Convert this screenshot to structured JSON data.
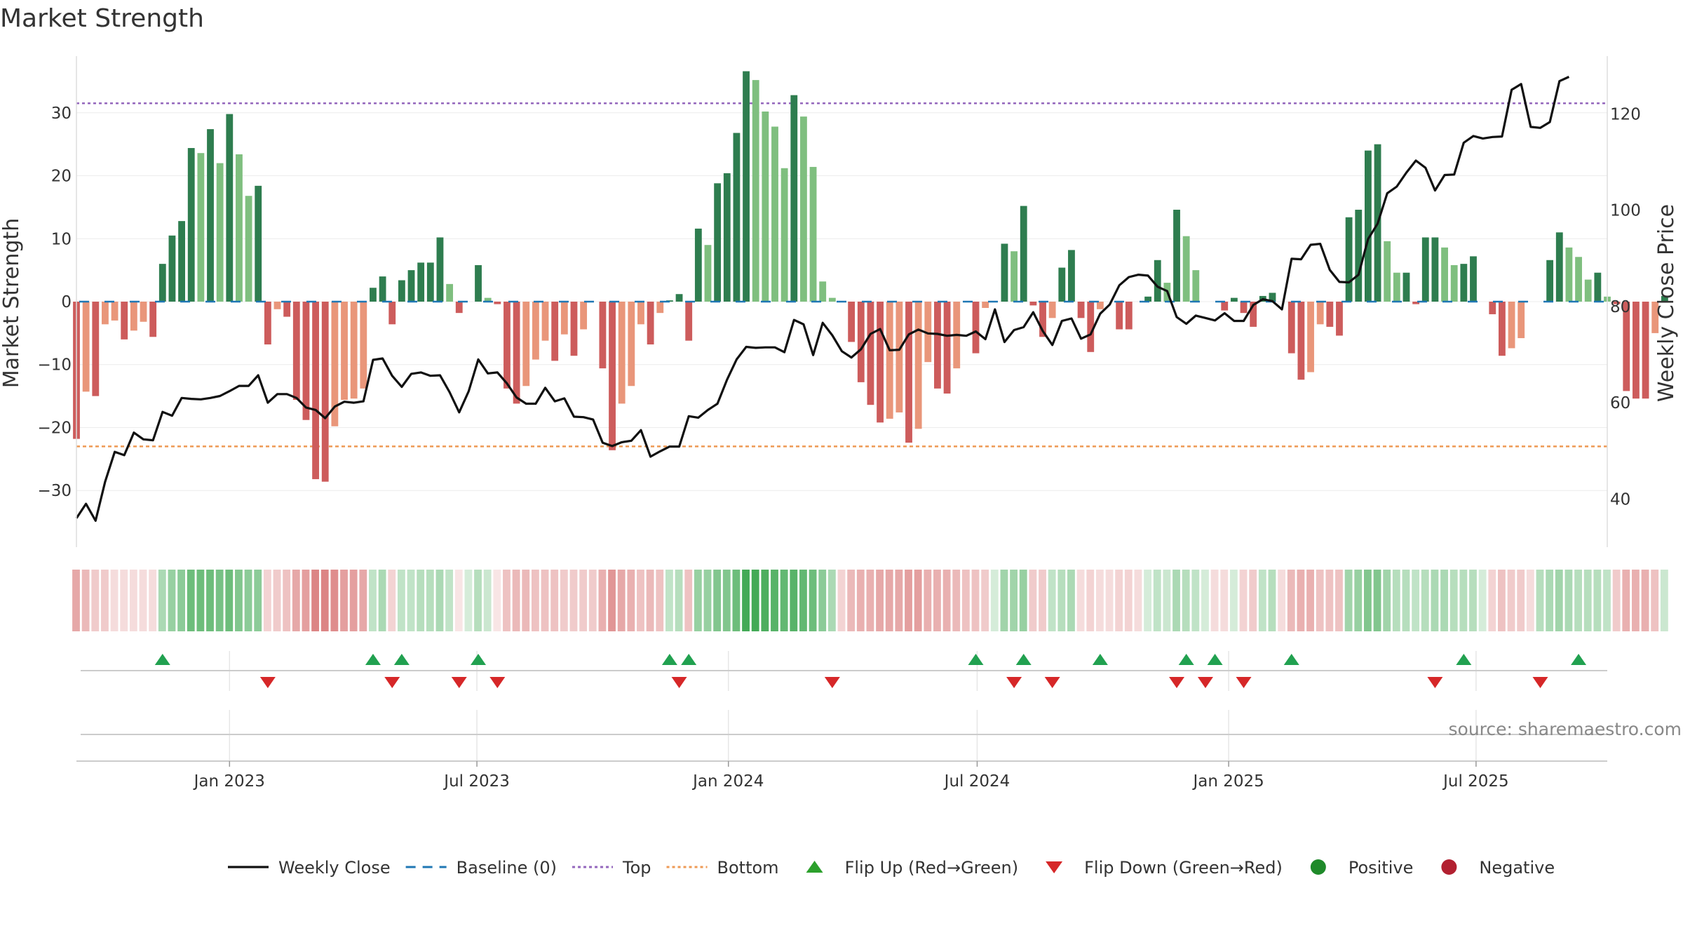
{
  "chart_data": {
    "type": "bar",
    "title": "Market Strength",
    "ylabel": "Market Strength",
    "y2label": "Weekly Close Price",
    "source": "source: sharemaestro.com",
    "ylim": [
      -39,
      39
    ],
    "y2lim": [
      30,
      132
    ],
    "yticks": [
      -30,
      -20,
      -10,
      0,
      10,
      20,
      30
    ],
    "y2ticks": [
      40,
      60,
      80,
      100,
      120
    ],
    "x_start": "2022-09-11",
    "x_end": "2025-10-05",
    "xticks": [
      {
        "date": "2023-01-01",
        "label": "Jan 2023"
      },
      {
        "date": "2023-07-01",
        "label": "Jul 2023"
      },
      {
        "date": "2024-01-01",
        "label": "Jan 2024"
      },
      {
        "date": "2024-07-01",
        "label": "Jul 2024"
      },
      {
        "date": "2025-01-01",
        "label": "Jan 2025"
      },
      {
        "date": "2025-07-01",
        "label": "Jul 2025"
      }
    ],
    "top_level": 31.5,
    "bottom_level": -23,
    "week_start": "2022-09-11",
    "strength": [
      -21.8,
      -14.3,
      -15,
      -3.6,
      -3,
      -6,
      -4.6,
      -3.2,
      -5.6,
      6,
      10.5,
      12.8,
      24.4,
      23.6,
      27.4,
      22,
      29.8,
      23.4,
      16.8,
      18.4,
      -6.8,
      -1.2,
      -2.4,
      -15.6,
      -18.8,
      -28.2,
      -28.6,
      -19.8,
      -15.6,
      -15.4,
      -13.8,
      2.2,
      4,
      -3.6,
      3.4,
      5,
      6.2,
      6.2,
      10.2,
      2.8,
      -1.8,
      0,
      5.8,
      0.6,
      -0.4,
      -13.8,
      -16.2,
      -13.4,
      -9.2,
      -6.2,
      -9.4,
      -5.2,
      -8.6,
      -4.4,
      0,
      -10.6,
      -23.6,
      -16.2,
      -13.4,
      -3.6,
      -6.8,
      -1.8,
      0.2,
      1.2,
      -6.2,
      11.6,
      9,
      18.8,
      20.4,
      26.8,
      36.6,
      35.2,
      30.2,
      27.8,
      21.2,
      32.8,
      29.4,
      21.4,
      3.2,
      0.6,
      0,
      -6.4,
      -12.8,
      -16.4,
      -19.2,
      -18.6,
      -17.6,
      -22.4,
      -20.2,
      -9.6,
      -13.8,
      -14.6,
      -10.6,
      0,
      -8.2,
      -1,
      0,
      9.2,
      8,
      15.2,
      -0.6,
      -5.6,
      -2.6,
      5.4,
      8.2,
      -2.6,
      -8,
      -1.2,
      0,
      -4.4,
      -4.4,
      0,
      0.8,
      6.6,
      3,
      14.6,
      10.4,
      5,
      0,
      0,
      -1.4,
      0.6,
      -1.8,
      -4,
      0.9,
      1.4,
      0,
      -8.2,
      -12.4,
      -11.2,
      -3.6,
      -4,
      -5.4,
      13.4,
      14.6,
      24,
      25,
      9.6,
      4.6,
      4.6,
      -0.4,
      10.2,
      10.2,
      8.6,
      5.8,
      6,
      7.2,
      0,
      -2,
      -8.6,
      -7.4,
      -5.8,
      0,
      0,
      6.6,
      11,
      8.6,
      7.1,
      3.5,
      4.6,
      0.8,
      -0.4,
      -14.2,
      -15.4,
      -15.4,
      -5,
      0.9
    ],
    "close": [
      36,
      39,
      35.5,
      43.6,
      49.8,
      49.1,
      53.8,
      52.4,
      52.2,
      58.1,
      57.3,
      61,
      60.8,
      60.7,
      61,
      61.4,
      62.4,
      63.5,
      63.5,
      65.7,
      60,
      61.8,
      61.8,
      61,
      59,
      58.5,
      56.8,
      59.2,
      60.2,
      60,
      60.3,
      68.9,
      69.2,
      65.6,
      63.3,
      66,
      66.3,
      65.6,
      65.7,
      62.2,
      58,
      62.4,
      69,
      66.1,
      66.3,
      64,
      61.1,
      59.8,
      59.8,
      63.1,
      60.3,
      60.9,
      57.1,
      57,
      56.5,
      51.7,
      51,
      51.8,
      52.1,
      54.3,
      48.8,
      49.9,
      50.9,
      50.9,
      57.2,
      56.9,
      58.5,
      59.8,
      64.8,
      69,
      71.6,
      71.4,
      71.5,
      71.5,
      70.5,
      77.2,
      76.3,
      69.9,
      76.6,
      74,
      70.7,
      69.4,
      71.1,
      74.3,
      75.3,
      70.9,
      71,
      74.2,
      75.2,
      74.4,
      74.3,
      73.9,
      74.1,
      73.9,
      74.8,
      73.2,
      79.4,
      72.6,
      75.1,
      75.7,
      78.8,
      74.9,
      72,
      77,
      77.5,
      73.3,
      74.2,
      78.5,
      80.4,
      84.4,
      86.1,
      86.6,
      86.4,
      84.1,
      83.2,
      77.8,
      76.4,
      78.1,
      77.6,
      77.1,
      78.6,
      77,
      77,
      80.3,
      81.5,
      81.1,
      79.4,
      89.9,
      89.8,
      92.8,
      93,
      87.6,
      85.1,
      85,
      86.6,
      94,
      97.2,
      103.5,
      104.9,
      107.8,
      110.3,
      108.8,
      104.1,
      107.3,
      107.4,
      114,
      115.4,
      114.9,
      115.2,
      115.3,
      125,
      126.2,
      117.3,
      117.1,
      118.3,
      126.8,
      127.7
    ],
    "heat": [
      -0.5,
      -0.4,
      -0.3,
      -0.3,
      -0.2,
      -0.2,
      -0.2,
      -0.2,
      -0.2,
      0.4,
      0.5,
      0.55,
      0.7,
      0.7,
      0.7,
      0.65,
      0.7,
      0.6,
      0.55,
      0.55,
      -0.25,
      -0.3,
      -0.35,
      -0.5,
      -0.55,
      -0.7,
      -0.7,
      -0.65,
      -0.55,
      -0.55,
      -0.5,
      0.3,
      0.4,
      -0.25,
      0.3,
      0.3,
      0.35,
      0.35,
      0.4,
      0.3,
      -0.15,
      0.2,
      0.35,
      0.25,
      -0.15,
      -0.35,
      -0.4,
      -0.4,
      -0.35,
      -0.35,
      -0.35,
      -0.3,
      -0.3,
      -0.3,
      -0.3,
      -0.45,
      -0.6,
      -0.5,
      -0.45,
      -0.35,
      -0.4,
      -0.35,
      0.3,
      0.35,
      -0.35,
      0.5,
      0.5,
      0.6,
      0.6,
      0.7,
      0.9,
      0.9,
      0.85,
      0.8,
      0.75,
      0.8,
      0.75,
      0.7,
      0.55,
      0.4,
      -0.25,
      -0.4,
      -0.45,
      -0.45,
      -0.5,
      -0.5,
      -0.5,
      -0.55,
      -0.55,
      -0.45,
      -0.45,
      -0.45,
      -0.4,
      -0.35,
      -0.35,
      -0.3,
      0.2,
      0.45,
      0.45,
      0.5,
      -0.3,
      -0.3,
      0.3,
      0.35,
      0.4,
      -0.2,
      -0.25,
      -0.2,
      -0.2,
      -0.25,
      -0.25,
      -0.2,
      0.2,
      0.3,
      0.25,
      0.4,
      0.35,
      0.3,
      0.2,
      -0.2,
      -0.2,
      0.2,
      -0.25,
      -0.3,
      0.3,
      0.35,
      -0.2,
      -0.4,
      -0.45,
      -0.45,
      -0.35,
      -0.35,
      -0.35,
      0.45,
      0.5,
      0.6,
      0.6,
      0.45,
      0.35,
      0.35,
      0.3,
      0.35,
      0.4,
      0.4,
      0.35,
      0.35,
      0.35,
      0.2,
      -0.25,
      -0.35,
      -0.3,
      -0.3,
      -0.2,
      0.35,
      0.4,
      0.45,
      0.4,
      0.35,
      0.35,
      0.35,
      0.3,
      -0.3,
      -0.45,
      -0.45,
      -0.45,
      -0.35,
      0.25
    ],
    "flip_up_weeks": [
      9,
      31,
      34,
      42,
      62,
      64,
      94,
      99,
      107,
      116,
      119,
      127,
      145,
      157
    ],
    "flip_down_weeks": [
      20,
      33,
      40,
      44,
      63,
      79,
      98,
      102,
      115,
      118,
      122,
      142,
      153
    ],
    "legend": [
      {
        "label": "Weekly Close",
        "type": "line-solid",
        "color": "#111111"
      },
      {
        "label": "Baseline (0)",
        "type": "line-dashed",
        "color": "#1f77b4"
      },
      {
        "label": "Top",
        "type": "line-dotted",
        "color": "#9467bd"
      },
      {
        "label": "Bottom",
        "type": "line-dotted",
        "color": "#ee9a55"
      },
      {
        "label": "Flip Up (Red→Green)",
        "type": "triangle-up",
        "color": "#2ca02c"
      },
      {
        "label": "Flip Down (Green→Red)",
        "type": "triangle-down",
        "color": "#d62728"
      },
      {
        "label": "Positive",
        "type": "circle",
        "color": "#1f8a2a"
      },
      {
        "label": "Negative",
        "type": "circle",
        "color": "#b22030"
      }
    ],
    "colors": {
      "strong_positive": "#2e7d4f",
      "weak_positive": "#7fbf7f",
      "strong_negative": "#cd5c5c",
      "weak_negative": "#e9967a",
      "line": "#111111",
      "baseline": "#1f77b4",
      "top": "#9467bd",
      "bottom": "#ee9a55",
      "flip_up": "#21a150",
      "flip_down": "#d62728"
    }
  }
}
